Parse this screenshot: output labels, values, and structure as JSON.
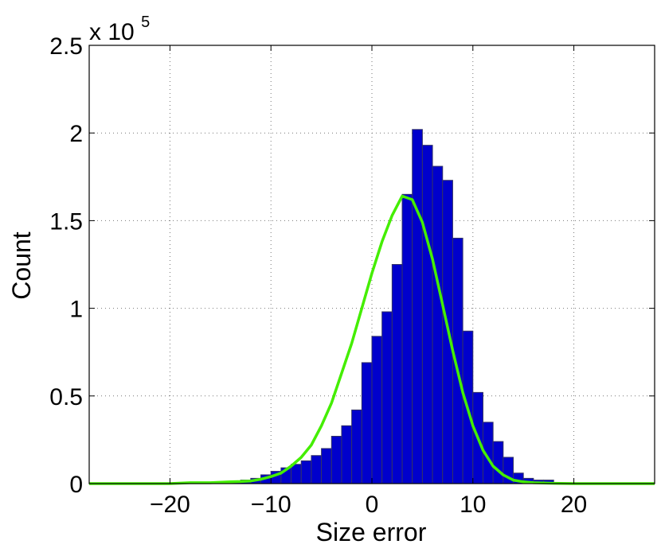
{
  "chart_data": {
    "type": "bar",
    "title": "",
    "xlabel": "Size error",
    "ylabel": "Count",
    "y_multiplier_label": {
      "base": "x 10",
      "exponent": "5"
    },
    "xlim": [
      -28,
      28
    ],
    "ylim": [
      0,
      2.5
    ],
    "xticks": [
      -20,
      -10,
      0,
      10,
      20
    ],
    "xtick_labels": [
      "−20",
      "−10",
      "0",
      "10",
      "20"
    ],
    "yticks": [
      0,
      0.5,
      1,
      1.5,
      2,
      2.5
    ],
    "ytick_labels": [
      "0",
      "0.5",
      "1",
      "1.5",
      "2",
      "2.5"
    ],
    "grid": true,
    "histogram": {
      "name": "",
      "color": "#0000cc",
      "edge_color": "#333366",
      "bin_width": 1,
      "bin_left_edges": [
        -14,
        -13,
        -12,
        -11,
        -10,
        -9,
        -8,
        -7,
        -6,
        -5,
        -4,
        -3,
        -2,
        -1,
        0,
        1,
        2,
        3,
        4,
        5,
        6,
        7,
        8,
        9,
        10,
        11,
        12,
        13,
        14,
        15,
        16,
        17
      ],
      "values": [
        0.01,
        0.02,
        0.03,
        0.05,
        0.07,
        0.09,
        0.11,
        0.13,
        0.16,
        0.2,
        0.27,
        0.33,
        0.42,
        0.69,
        0.84,
        0.98,
        1.25,
        1.65,
        2.02,
        1.93,
        1.81,
        1.73,
        1.4,
        0.87,
        0.52,
        0.35,
        0.24,
        0.15,
        0.06,
        0.03,
        0.02,
        0.02
      ]
    },
    "fit_curve": {
      "name": "",
      "color": "#44ee00",
      "x": [
        -28,
        -20,
        -18,
        -16,
        -14,
        -13,
        -12,
        -11,
        -10,
        -9,
        -8,
        -7,
        -6,
        -5,
        -4,
        -3,
        -2,
        -1,
        0,
        1,
        2,
        3,
        4,
        5,
        6,
        7,
        8,
        9,
        10,
        11,
        12,
        13,
        14,
        15,
        16,
        18,
        20,
        28
      ],
      "y": [
        0,
        0,
        0.005,
        0.005,
        0.01,
        0.012,
        0.015,
        0.025,
        0.04,
        0.06,
        0.1,
        0.15,
        0.22,
        0.33,
        0.46,
        0.63,
        0.8,
        1.0,
        1.2,
        1.38,
        1.53,
        1.64,
        1.62,
        1.49,
        1.28,
        1.02,
        0.76,
        0.52,
        0.33,
        0.19,
        0.1,
        0.05,
        0.02,
        0.01,
        0.005,
        0.002,
        0,
        0
      ]
    }
  }
}
